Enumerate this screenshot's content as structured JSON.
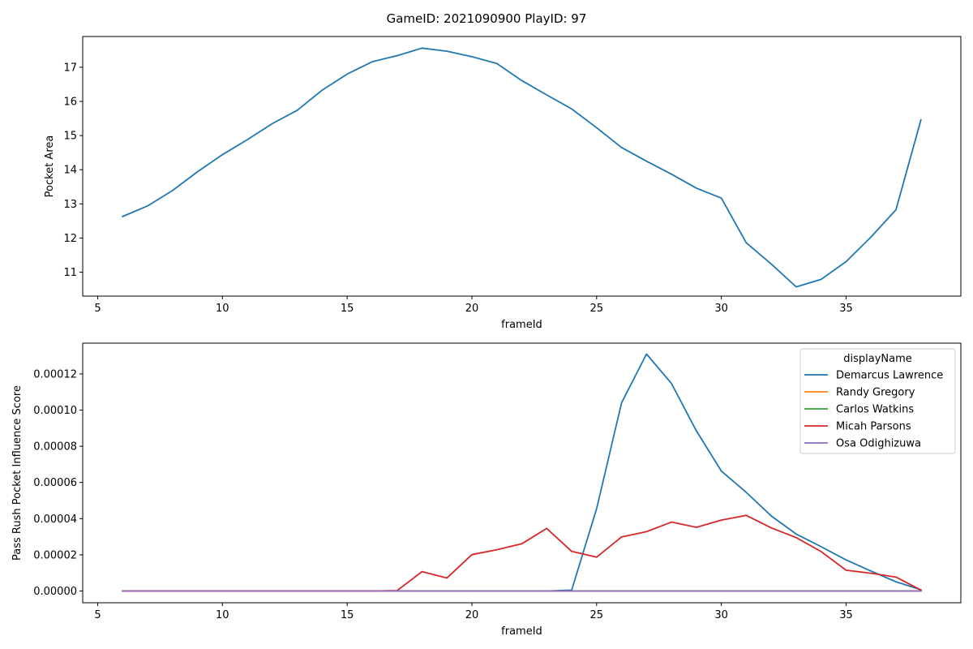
{
  "figure": {
    "title": "GameID: 2021090900 PlayID: 97"
  },
  "chart_data": [
    {
      "type": "line",
      "xlabel": "frameId",
      "ylabel": "Pocket Area",
      "xlim": [
        4.4,
        39.6
      ],
      "ylim": [
        10.3,
        17.9
      ],
      "xticks": [
        5,
        10,
        15,
        20,
        25,
        30,
        35
      ],
      "yticks": [
        11,
        12,
        13,
        14,
        15,
        16,
        17
      ],
      "grid": false,
      "series": [
        {
          "color": "#1f77b4",
          "x": [
            6,
            7,
            8,
            9,
            10,
            11,
            12,
            13,
            14,
            15,
            16,
            17,
            18,
            19,
            20,
            21,
            22,
            23,
            24,
            25,
            26,
            27,
            28,
            29,
            30,
            31,
            32,
            33,
            34,
            35,
            36,
            37,
            38
          ],
          "y": [
            12.63,
            12.94,
            13.39,
            13.94,
            14.44,
            14.88,
            15.35,
            15.74,
            16.33,
            16.8,
            17.16,
            17.34,
            17.56,
            17.47,
            17.31,
            17.11,
            16.61,
            16.19,
            15.78,
            15.23,
            14.65,
            14.25,
            13.87,
            13.46,
            13.17,
            11.86,
            11.24,
            10.57,
            10.79,
            11.31,
            12.03,
            12.83,
            15.46
          ]
        }
      ]
    },
    {
      "type": "line",
      "xlabel": "frameId",
      "ylabel": "Pass Rush Pocket Influence Score",
      "xlim": [
        4.4,
        39.6
      ],
      "ylim": [
        -6.5e-06,
        0.000137
      ],
      "xticks": [
        5,
        10,
        15,
        20,
        25,
        30,
        35
      ],
      "yticks": [
        0,
        2e-05,
        4e-05,
        6e-05,
        8e-05,
        0.0001,
        0.00012
      ],
      "ytick_labels": [
        "0.00000",
        "0.00002",
        "0.00004",
        "0.00006",
        "0.00008",
        "0.00010",
        "0.00012"
      ],
      "grid": false,
      "legend": {
        "title": "displayName",
        "placement": "top-right"
      },
      "x": [
        6,
        7,
        8,
        9,
        10,
        11,
        12,
        13,
        14,
        15,
        16,
        17,
        18,
        19,
        20,
        21,
        22,
        23,
        24,
        25,
        26,
        27,
        28,
        29,
        30,
        31,
        32,
        33,
        34,
        35,
        36,
        37,
        38
      ],
      "series": [
        {
          "name": "Demarcus Lawrence",
          "color": "#1f77b4",
          "values": [
            0,
            0,
            0,
            0,
            0,
            0,
            0,
            0,
            0,
            0,
            0,
            0,
            0,
            0,
            0,
            0,
            0,
            0,
            5e-07,
            4.55e-05,
            0.000104,
            0.000131,
            0.0001147,
            8.85e-05,
            6.63e-05,
            5.45e-05,
            4.15e-05,
            3.15e-05,
            2.45e-05,
            1.72e-05,
            1.1e-05,
            5.1e-06,
            7e-07
          ]
        },
        {
          "name": "Randy Gregory",
          "color": "#ff7f0e",
          "values": [
            0,
            0,
            0,
            0,
            0,
            0,
            0,
            0,
            0,
            0,
            0,
            0,
            0,
            0,
            0,
            0,
            0,
            0,
            0,
            0,
            0,
            0,
            0,
            0,
            0,
            0,
            0,
            0,
            0,
            0,
            0,
            0,
            0
          ]
        },
        {
          "name": "Carlos Watkins",
          "color": "#2ca02c",
          "values": [
            0,
            0,
            0,
            0,
            0,
            0,
            0,
            0,
            0,
            0,
            0,
            0,
            0,
            0,
            0,
            0,
            0,
            0,
            0,
            0,
            0,
            0,
            0,
            0,
            0,
            0,
            0,
            0,
            0,
            0,
            0,
            0,
            0
          ]
        },
        {
          "name": "Micah Parsons",
          "color": "#d62728",
          "values": [
            0,
            0,
            0,
            0,
            0,
            0,
            0,
            0,
            0,
            0,
            0,
            2e-07,
            1.07e-05,
            7.2e-06,
            2.01e-05,
            2.28e-05,
            2.61e-05,
            3.46e-05,
            2.19e-05,
            1.87e-05,
            2.99e-05,
            3.28e-05,
            3.81e-05,
            3.52e-05,
            3.92e-05,
            4.18e-05,
            3.49e-05,
            2.95e-05,
            2.18e-05,
            1.15e-05,
            9.8e-06,
            7.7e-06,
            5e-07
          ]
        },
        {
          "name": "Osa Odighizuwa",
          "color": "#9467bd",
          "values": [
            0,
            0,
            0,
            0,
            0,
            0,
            0,
            0,
            0,
            0,
            0,
            0,
            0,
            0,
            0,
            0,
            0,
            0,
            0,
            0,
            0,
            0,
            0,
            0,
            0,
            0,
            0,
            0,
            0,
            0,
            0,
            0,
            0
          ]
        }
      ]
    }
  ]
}
